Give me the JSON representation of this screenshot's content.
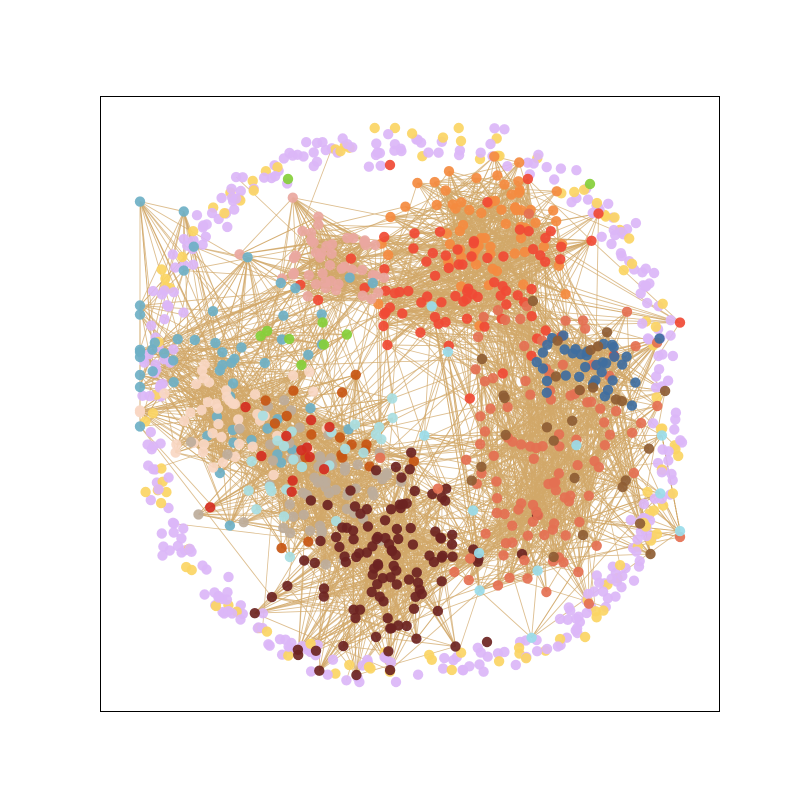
{
  "figure": {
    "background_color": "#ffffff",
    "frame_color": "#000000",
    "edge_color": "#d2a86a"
  },
  "graph": {
    "type": "network",
    "layout": "force-directed",
    "axes_visible": false,
    "communities": [
      {
        "name": "peripheral-lavender",
        "color": "#dbb6f7",
        "role": "outer ring of isolated nodes"
      },
      {
        "name": "peripheral-yellow",
        "color": "#fbd564",
        "role": "outer ring of isolated nodes"
      },
      {
        "name": "orange",
        "color": "#f48b40"
      },
      {
        "name": "red-orange",
        "color": "#f04a35"
      },
      {
        "name": "pink",
        "color": "#e9a79f"
      },
      {
        "name": "teal",
        "color": "#6eb0c6"
      },
      {
        "name": "lime",
        "color": "#86cf3a"
      },
      {
        "name": "peach",
        "color": "#f8d7c3"
      },
      {
        "name": "taupe",
        "color": "#bdad9b"
      },
      {
        "name": "burnt-orange",
        "color": "#c75614"
      },
      {
        "name": "light-cyan",
        "color": "#a9dee2"
      },
      {
        "name": "crimson",
        "color": "#d42e21"
      },
      {
        "name": "maroon",
        "color": "#6d2422"
      },
      {
        "name": "salmon",
        "color": "#e47052"
      },
      {
        "name": "steel-blue",
        "color": "#3f6e9f"
      },
      {
        "name": "brown",
        "color": "#8e5d34"
      },
      {
        "name": "sky-blue",
        "color": "#9adcea"
      }
    ]
  }
}
